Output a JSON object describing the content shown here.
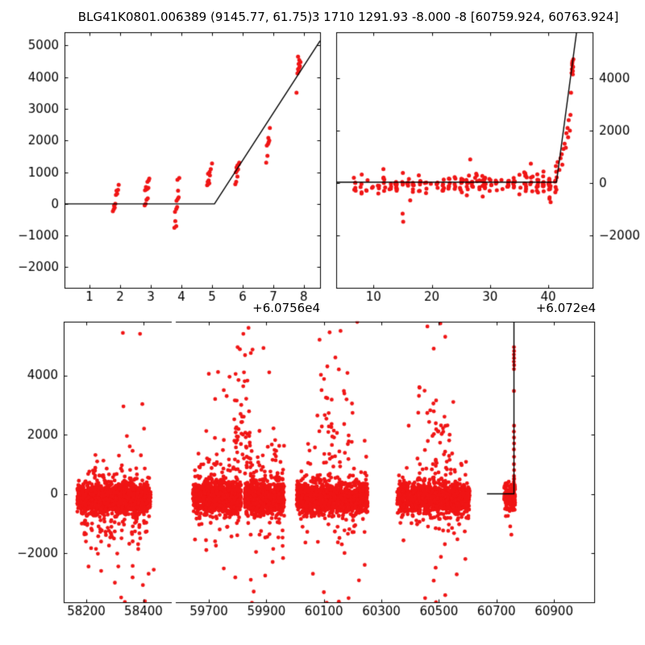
{
  "figure": {
    "background": "#ffffff",
    "marker_color": "#f01515",
    "line_color": "#000000",
    "axis_color": "#000000",
    "text_color": "#000000"
  },
  "chart_data": [
    {
      "id": "top-left",
      "type": "scatter",
      "title": "BLG41K0801.006389 (9145.77, 61.75)",
      "x_offset_label": "+6.0756e4",
      "xlim": [
        0.18,
        8.53
      ],
      "ylim": [
        -2650,
        5420
      ],
      "xticks": [
        1,
        2,
        3,
        4,
        5,
        6,
        7,
        8
      ],
      "yticks": [
        -2000,
        -1000,
        0,
        1000,
        2000,
        3000,
        4000,
        5000
      ],
      "grid": false,
      "legend": false,
      "line": [
        [
          0.18,
          0
        ],
        [
          5.08,
          0
        ],
        [
          8.53,
          5150
        ]
      ],
      "points": [
        [
          1.76,
          -230
        ],
        [
          1.79,
          -165
        ],
        [
          1.82,
          -120
        ],
        [
          1.8,
          -55
        ],
        [
          1.84,
          5
        ],
        [
          1.86,
          285
        ],
        [
          1.9,
          320
        ],
        [
          1.88,
          420
        ],
        [
          1.93,
          445
        ],
        [
          1.95,
          600
        ],
        [
          2.8,
          -45
        ],
        [
          2.83,
          5
        ],
        [
          2.86,
          130
        ],
        [
          2.9,
          175
        ],
        [
          2.81,
          430
        ],
        [
          2.85,
          455
        ],
        [
          2.88,
          475
        ],
        [
          2.92,
          505
        ],
        [
          2.84,
          530
        ],
        [
          2.89,
          700
        ],
        [
          2.93,
          745
        ],
        [
          2.95,
          800
        ],
        [
          3.77,
          -755
        ],
        [
          3.83,
          -700
        ],
        [
          3.8,
          -545
        ],
        [
          3.79,
          -250
        ],
        [
          3.83,
          -160
        ],
        [
          3.86,
          -95
        ],
        [
          3.84,
          100
        ],
        [
          3.88,
          155
        ],
        [
          3.91,
          205
        ],
        [
          3.89,
          420
        ],
        [
          3.87,
          760
        ],
        [
          3.93,
          820
        ],
        [
          4.84,
          590
        ],
        [
          4.87,
          620
        ],
        [
          4.91,
          650
        ],
        [
          4.86,
          700
        ],
        [
          4.89,
          745
        ],
        [
          4.93,
          900
        ],
        [
          4.87,
          955
        ],
        [
          4.92,
          1010
        ],
        [
          4.96,
          1100
        ],
        [
          5.0,
          1275
        ],
        [
          5.76,
          620
        ],
        [
          5.79,
          700
        ],
        [
          5.83,
          860
        ],
        [
          5.78,
          995
        ],
        [
          5.81,
          1040
        ],
        [
          5.85,
          1090
        ],
        [
          5.8,
          1150
        ],
        [
          5.83,
          1215
        ],
        [
          5.87,
          1250
        ],
        [
          5.89,
          1300
        ],
        [
          6.77,
          1300
        ],
        [
          6.81,
          1520
        ],
        [
          6.79,
          1845
        ],
        [
          6.83,
          1895
        ],
        [
          6.85,
          1945
        ],
        [
          6.87,
          2000
        ],
        [
          6.84,
          2085
        ],
        [
          6.89,
          2400
        ],
        [
          7.76,
          3510
        ],
        [
          7.79,
          4120
        ],
        [
          7.83,
          4195
        ],
        [
          7.81,
          4255
        ],
        [
          7.85,
          4300
        ],
        [
          7.87,
          4350
        ],
        [
          7.83,
          4420
        ],
        [
          7.89,
          4480
        ],
        [
          7.85,
          4540
        ],
        [
          7.81,
          4650
        ]
      ],
      "clusters": []
    },
    {
      "id": "top-right",
      "type": "scatter",
      "title": "3 1710 1291.93 -8.000 -8 [60759.924, 60763.924]",
      "x_offset_label": "+6.072e4",
      "xlim": [
        3.6,
        47.6
      ],
      "ylim": [
        -4000,
        5754
      ],
      "xticks": [
        10,
        20,
        30,
        40
      ],
      "yticks": [
        -2000,
        0,
        2000,
        4000
      ],
      "grid": false,
      "legend": false,
      "line": [
        [
          3.6,
          30
        ],
        [
          41.4,
          30
        ],
        [
          44.85,
          5754
        ]
      ],
      "points": [
        [
          15.0,
          -1170
        ],
        [
          15.1,
          -1475
        ],
        [
          16.3,
          -660
        ],
        [
          11.7,
          530
        ],
        [
          26.6,
          900
        ],
        [
          40.2,
          -600
        ],
        [
          40.4,
          -730
        ],
        [
          41.3,
          650
        ],
        [
          41.6,
          800
        ],
        [
          41.9,
          500
        ],
        [
          42.1,
          950
        ],
        [
          42.3,
          1100
        ],
        [
          42.6,
          1300
        ],
        [
          42.4,
          700
        ],
        [
          42.8,
          1500
        ],
        [
          43.0,
          1350
        ],
        [
          43.1,
          1900
        ],
        [
          43.3,
          2100
        ],
        [
          43.5,
          2400
        ],
        [
          43.4,
          1750
        ],
        [
          43.7,
          2000
        ],
        [
          43.8,
          2600
        ],
        [
          43.9,
          3450
        ],
        [
          44.0,
          4200
        ],
        [
          44.05,
          4350
        ],
        [
          44.1,
          4500
        ],
        [
          44.15,
          4650
        ],
        [
          44.2,
          4280
        ],
        [
          44.25,
          4430
        ],
        [
          44.1,
          4580
        ],
        [
          44.3,
          4720
        ],
        [
          44.2,
          4150
        ]
      ],
      "clusters": [
        {
          "x0": 6.8,
          "x1": 41.2,
          "cols": 35,
          "n": 175,
          "mean": -70,
          "sigma": 170,
          "clip": [
            -480,
            420
          ]
        },
        {
          "x0": 24.0,
          "x1": 30.0,
          "cols": 6,
          "n": 18,
          "mean": 150,
          "sigma": 280,
          "clip": [
            -650,
            700
          ]
        },
        {
          "x0": 36.0,
          "x1": 41.3,
          "cols": 6,
          "n": 26,
          "mean": 120,
          "sigma": 260,
          "clip": [
            -750,
            800
          ]
        }
      ]
    },
    {
      "id": "bottom-left",
      "type": "scatter",
      "title": "",
      "x_offset_label": "",
      "xlim": [
        58121,
        58496
      ],
      "ylim": [
        -3660,
        5810
      ],
      "xticks": [
        58200,
        58400
      ],
      "yticks": [
        -2000,
        0,
        2000,
        4000
      ],
      "grid": false,
      "legend": false,
      "line": null,
      "points": [
        [
          58328,
          5430
        ],
        [
          58388,
          5400
        ],
        [
          58330,
          2950
        ],
        [
          58396,
          3030
        ],
        [
          58402,
          2200
        ],
        [
          58342,
          1950
        ],
        [
          58232,
          1310
        ],
        [
          58352,
          1600
        ],
        [
          58362,
          1450
        ],
        [
          58391,
          1300
        ],
        [
          58260,
          1120
        ],
        [
          58300,
          -3000
        ],
        [
          58322,
          -3500
        ],
        [
          58398,
          -3080
        ],
        [
          58362,
          -2820
        ],
        [
          58252,
          -2600
        ],
        [
          58418,
          -2700
        ],
        [
          58312,
          -2450
        ],
        [
          58234,
          -1860
        ],
        [
          58436,
          -2560
        ],
        [
          58335,
          -3650
        ],
        [
          58405,
          -3620
        ]
      ],
      "clusters": [
        {
          "x0": 58168,
          "x1": 58425,
          "n": 1350,
          "mean": -130,
          "sigma": 250,
          "clip": [
            -800,
            560
          ]
        },
        {
          "x0": 58180,
          "x1": 58420,
          "n": 130,
          "mean": -700,
          "sigma": 650,
          "clip": [
            -2900,
            -300
          ]
        },
        {
          "x0": 58200,
          "x1": 58420,
          "n": 40,
          "mean": 500,
          "sigma": 350,
          "clip": [
            300,
            1500
          ]
        }
      ]
    },
    {
      "id": "bottom-right",
      "type": "scatter",
      "title": "",
      "x_offset_label": "",
      "xlim": [
        59585,
        61040
      ],
      "ylim": [
        -3660,
        5810
      ],
      "xticks": [
        59700,
        59900,
        60100,
        60300,
        60500,
        60700,
        60900
      ],
      "yticks": [
        -2000,
        0,
        2000,
        4000
      ],
      "grid": false,
      "legend": false,
      "line": [
        [
          60667,
          0
        ],
        [
          60761,
          0
        ],
        [
          60761,
          5810
        ]
      ],
      "points": [
        [
          59820,
          5400
        ],
        [
          59838,
          5600
        ],
        [
          59800,
          4950
        ],
        [
          59808,
          4880
        ],
        [
          59826,
          4680
        ],
        [
          59852,
          4870
        ],
        [
          59846,
          4750
        ],
        [
          59890,
          4920
        ],
        [
          59910,
          4100
        ],
        [
          59700,
          4050
        ],
        [
          59732,
          4110
        ],
        [
          59772,
          3950
        ],
        [
          59752,
          3500
        ],
        [
          59762,
          3300
        ],
        [
          59722,
          3200
        ],
        [
          60120,
          5450
        ],
        [
          60158,
          5500
        ],
        [
          60085,
          5200
        ],
        [
          60140,
          4600
        ],
        [
          60112,
          4300
        ],
        [
          60152,
          4200
        ],
        [
          60182,
          4080
        ],
        [
          60216,
          5800
        ],
        [
          60092,
          3500
        ],
        [
          60460,
          5650
        ],
        [
          60505,
          5750
        ],
        [
          60522,
          5300
        ],
        [
          60482,
          4900
        ],
        [
          60432,
          3600
        ],
        [
          60550,
          3100
        ],
        [
          60395,
          2300
        ],
        [
          59850,
          -3680
        ],
        [
          59800,
          -3750
        ],
        [
          59856,
          -3300
        ],
        [
          59846,
          -2900
        ],
        [
          59922,
          -2300
        ],
        [
          59896,
          -2760
        ],
        [
          59752,
          -2520
        ],
        [
          59792,
          -2820
        ],
        [
          60100,
          -3320
        ],
        [
          60152,
          -3640
        ],
        [
          60186,
          -3520
        ],
        [
          60222,
          -2920
        ],
        [
          60062,
          -2700
        ],
        [
          60242,
          -2400
        ],
        [
          60110,
          -3680
        ],
        [
          60452,
          -3520
        ],
        [
          60522,
          -3420
        ],
        [
          60562,
          -2720
        ],
        [
          60482,
          -2930
        ],
        [
          60592,
          -2200
        ],
        [
          60490,
          -3660
        ],
        [
          60748,
          -1100
        ],
        [
          60752,
          -1380
        ],
        [
          60761,
          4950
        ],
        [
          60761.5,
          4820
        ],
        [
          60760.8,
          4700
        ],
        [
          60761.2,
          4580
        ],
        [
          60760.6,
          4460
        ],
        [
          60761.6,
          4340
        ],
        [
          60761.0,
          4210
        ],
        [
          60760.9,
          3470
        ],
        [
          60761.3,
          2300
        ],
        [
          60760.7,
          2100
        ],
        [
          60761.1,
          1900
        ],
        [
          60761.4,
          1700
        ],
        [
          60760.8,
          1500
        ],
        [
          60761.2,
          1250
        ],
        [
          60760.9,
          1000
        ],
        [
          60761.5,
          800
        ],
        [
          60761.1,
          600
        ]
      ],
      "clusters": [
        {
          "x0": 59645,
          "x1": 59812,
          "n": 950,
          "mean": -120,
          "sigma": 260,
          "clip": [
            -850,
            600
          ]
        },
        {
          "x0": 59650,
          "x1": 59812,
          "n": 120,
          "mean": 100,
          "sigma": 800,
          "clip": [
            -2600,
            2600
          ]
        },
        {
          "x0": 59788,
          "x1": 59845,
          "n": 45,
          "mean": 2200,
          "sigma": 900,
          "clip": [
            800,
            4400
          ]
        },
        {
          "x0": 59825,
          "x1": 59962,
          "n": 800,
          "mean": -150,
          "sigma": 270,
          "clip": [
            -900,
            600
          ]
        },
        {
          "x0": 59825,
          "x1": 59962,
          "n": 110,
          "mean": 0,
          "sigma": 900,
          "clip": [
            -3200,
            3200
          ]
        },
        {
          "x0": 60005,
          "x1": 60252,
          "n": 1150,
          "mean": -140,
          "sigma": 260,
          "clip": [
            -850,
            580
          ]
        },
        {
          "x0": 60020,
          "x1": 60250,
          "n": 150,
          "mean": 0,
          "sigma": 850,
          "clip": [
            -2800,
            2800
          ]
        },
        {
          "x0": 60080,
          "x1": 60200,
          "n": 35,
          "mean": 2300,
          "sigma": 900,
          "clip": [
            900,
            4300
          ]
        },
        {
          "x0": 60355,
          "x1": 60607,
          "n": 1150,
          "mean": -150,
          "sigma": 260,
          "clip": [
            -900,
            560
          ]
        },
        {
          "x0": 60360,
          "x1": 60600,
          "n": 130,
          "mean": 0,
          "sigma": 800,
          "clip": [
            -2500,
            2500
          ]
        },
        {
          "x0": 60420,
          "x1": 60560,
          "n": 30,
          "mean": 2100,
          "sigma": 800,
          "clip": [
            800,
            3600
          ]
        },
        {
          "x0": 60727,
          "x1": 60765,
          "n": 190,
          "mean": -80,
          "sigma": 260,
          "clip": [
            -900,
            780
          ]
        }
      ]
    }
  ]
}
